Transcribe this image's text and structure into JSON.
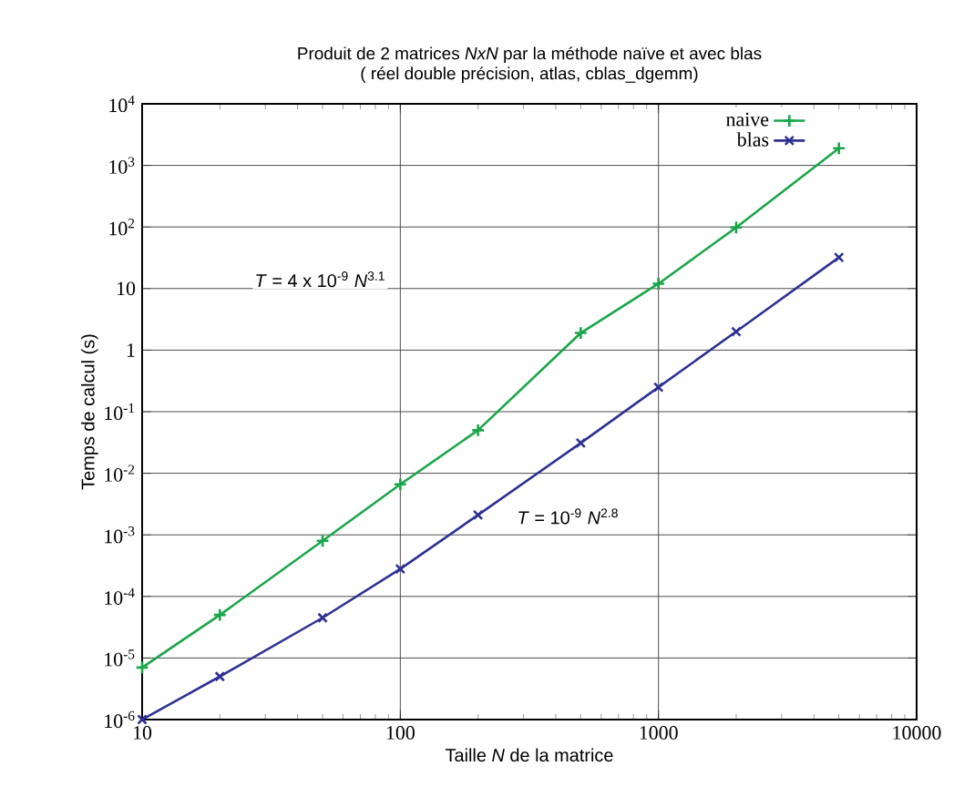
{
  "chart_data": {
    "type": "line",
    "title": "Produit de 2 matrices *NxN* par la méthode naïve et avec blas",
    "subtitle": "( réel double précision, atlas, cblas_dgemm)",
    "xlabel": "Taille *N* de la matrice",
    "ylabel": "Temps de calcul (s)",
    "x": [
      10,
      20,
      50,
      100,
      200,
      500,
      1000,
      2000,
      5000
    ],
    "series": [
      {
        "name": "naive",
        "color": "#1aa64a",
        "marker": "plus",
        "values": [
          7e-06,
          5e-05,
          0.0008,
          0.0066,
          0.05,
          1.9,
          12,
          98,
          1900
        ]
      },
      {
        "name": "blas",
        "color": "#2e3192",
        "marker": "cross",
        "values": [
          1e-06,
          5e-06,
          4.5e-05,
          0.00028,
          0.0021,
          0.031,
          0.25,
          2.0,
          32
        ]
      }
    ],
    "log": "xy",
    "xlim": [
      10,
      10000
    ],
    "ylim": [
      1e-06,
      10000
    ],
    "xticks": [
      10,
      100,
      1000,
      10000
    ],
    "yticks": [
      {
        "value": 1e-06,
        "label": "10$^{-6}$"
      },
      {
        "value": 1e-05,
        "label": "10$^{-5}$"
      },
      {
        "value": 0.0001,
        "label": "10$^{-4}$"
      },
      {
        "value": 0.001,
        "label": "10$^{-3}$"
      },
      {
        "value": 0.01,
        "label": "10$^{-2}$"
      },
      {
        "value": 0.1,
        "label": "10$^{-1}$"
      },
      {
        "value": 1,
        "label": "1"
      },
      {
        "value": 10,
        "label": "10"
      },
      {
        "value": 100,
        "label": "10$^{2}$"
      },
      {
        "value": 1000,
        "label": "10$^{3}$"
      },
      {
        "value": 10000,
        "label": "10$^{4}$"
      }
    ],
    "grid": true,
    "legend": "top right",
    "line_style": "solid",
    "annotations": [
      "*T* = 4 x 10$^{-9}$ *N*$^{3.1}$",
      "*T* = 10$^{-9}$ *N*$^{2.8}$"
    ]
  }
}
